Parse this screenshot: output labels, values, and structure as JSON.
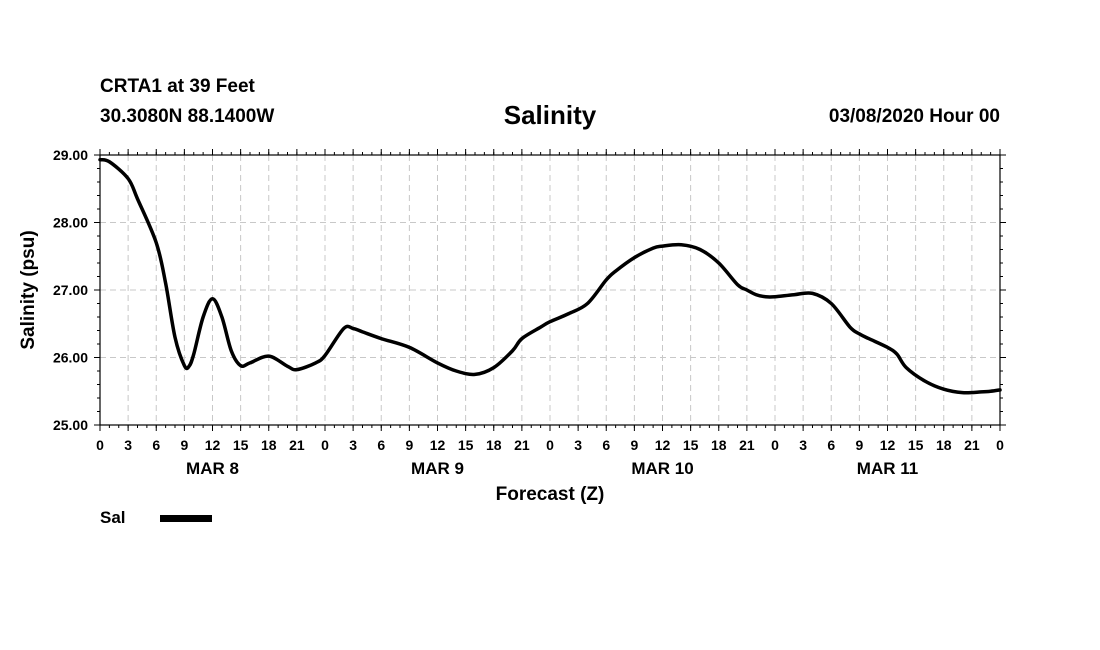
{
  "header": {
    "station": "CRTA1 at 39 Feet",
    "coords": "30.3080N 88.1400W",
    "run_time": "03/08/2020 Hour 00"
  },
  "chart_data": {
    "type": "line",
    "title": "Salinity",
    "xlabel": "Forecast (Z)",
    "ylabel": "Salinity (psu)",
    "ylim": [
      25.0,
      29.0
    ],
    "y_ticks": [
      "25.00",
      "26.00",
      "27.00",
      "28.00",
      "29.00"
    ],
    "xlim_hours": [
      0,
      96
    ],
    "x_tick_labels": [
      "0",
      "3",
      "6",
      "9",
      "12",
      "15",
      "18",
      "21",
      "0",
      "3",
      "6",
      "9",
      "12",
      "15",
      "18",
      "21",
      "0",
      "3",
      "6",
      "9",
      "12",
      "15",
      "18",
      "21",
      "0",
      "3",
      "6",
      "9",
      "12",
      "15",
      "18",
      "21",
      "0"
    ],
    "date_labels": [
      {
        "label": "MAR 8",
        "hour": 12
      },
      {
        "label": "MAR 9",
        "hour": 36
      },
      {
        "label": "MAR 10",
        "hour": 60
      },
      {
        "label": "MAR 11",
        "hour": 84
      }
    ],
    "grid": true,
    "legend_position": "bottom-left",
    "series": [
      {
        "name": "Sal",
        "color": "#000000",
        "x": [
          0,
          1,
          3,
          4,
          6,
          7,
          8,
          9,
          9.5,
          10,
          11,
          12,
          13,
          14,
          15,
          16,
          18,
          20,
          21,
          23,
          24,
          26,
          27,
          28,
          30,
          33,
          36,
          38,
          40,
          42,
          44,
          45,
          47,
          48,
          50,
          52,
          54,
          55,
          57,
          59,
          60,
          62,
          64,
          66,
          68,
          69,
          70,
          71,
          72,
          74,
          76,
          78,
          80,
          81,
          82,
          84,
          85,
          86,
          88,
          90,
          92,
          94,
          95,
          96
        ],
        "values": [
          28.93,
          28.9,
          28.65,
          28.35,
          27.7,
          27.1,
          26.3,
          25.88,
          25.87,
          26.05,
          26.6,
          26.87,
          26.6,
          26.1,
          25.88,
          25.92,
          26.02,
          25.87,
          25.82,
          25.92,
          26.03,
          26.43,
          26.43,
          26.38,
          26.28,
          26.15,
          25.92,
          25.8,
          25.75,
          25.85,
          26.1,
          26.28,
          26.45,
          26.53,
          26.65,
          26.8,
          27.15,
          27.28,
          27.48,
          27.62,
          27.65,
          27.67,
          27.6,
          27.4,
          27.08,
          27.0,
          26.93,
          26.9,
          26.9,
          26.93,
          26.95,
          26.8,
          26.45,
          26.35,
          26.28,
          26.15,
          26.05,
          25.85,
          25.65,
          25.53,
          25.48,
          25.49,
          25.5,
          25.52
        ]
      }
    ]
  }
}
